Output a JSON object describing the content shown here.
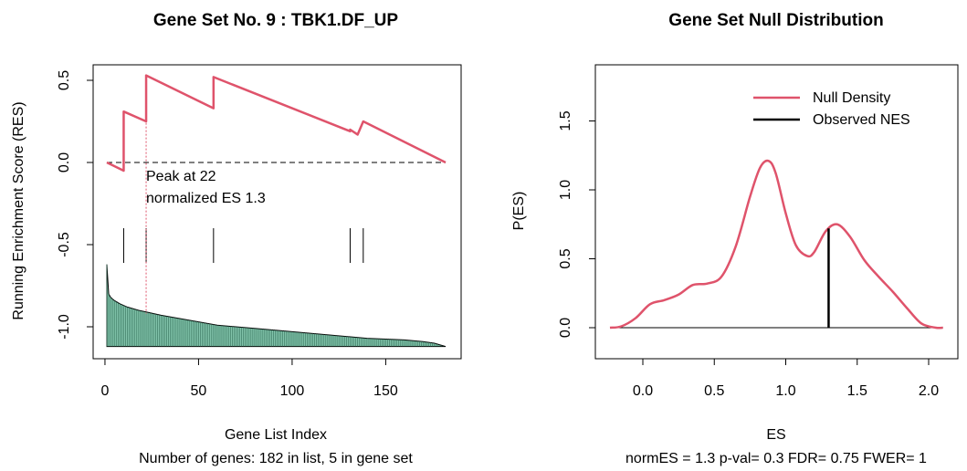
{
  "chart_data": [
    {
      "type": "line",
      "title": "Gene Set No. 9 : TBK1.DF_UP",
      "xlabel": "Gene List Index",
      "subtitle": "Number of genes: 182 in list, 5 in gene set",
      "ylabel": "Running Enrichment Score (RES)",
      "xlim": [
        1,
        182
      ],
      "ylim": [
        -1.15,
        0.58
      ],
      "x_ticks": [
        "0",
        "50",
        "100",
        "150"
      ],
      "y_ticks": [
        "-1.0",
        "-0.5",
        "0.0",
        "0.5"
      ],
      "annotation_lines": [
        "Peak at 22",
        "normalized ES 1.3"
      ],
      "peak_index": 22,
      "hit_indices": [
        10,
        22,
        58,
        131,
        138
      ],
      "colors": {
        "res_line": "#DF536B",
        "ranked_fill": "#82C4AB",
        "peak_line": "#DF536B"
      },
      "series": [
        {
          "x": [
            1,
            10,
            10,
            22,
            22,
            58,
            58,
            131,
            131,
            135,
            135,
            138,
            138,
            182
          ],
          "y": [
            0.0,
            -0.05,
            0.31,
            0.25,
            0.53,
            0.33,
            0.52,
            0.19,
            0.2,
            0.17,
            0.17,
            0.25,
            0.25,
            0.0
          ]
        }
      ],
      "ranked_metric": {
        "x": [
          1,
          2,
          3,
          5,
          8,
          12,
          18,
          22,
          30,
          40,
          50,
          60,
          80,
          100,
          120,
          140,
          160,
          170,
          176,
          182
        ],
        "y": [
          -0.62,
          -0.8,
          -0.82,
          -0.84,
          -0.86,
          -0.88,
          -0.9,
          -0.91,
          -0.93,
          -0.95,
          -0.97,
          -0.99,
          -1.01,
          -1.03,
          -1.05,
          -1.07,
          -1.08,
          -1.09,
          -1.1,
          -1.12
        ]
      }
    },
    {
      "type": "line",
      "title": "Gene Set Null Distribution",
      "xlabel": "ES",
      "subtitle": "normES = 1.3 p-val= 0.3 FDR= 0.75 FWER= 1",
      "ylabel": "P(ES)",
      "xlim": [
        -0.25,
        2.1
      ],
      "ylim": [
        0.0,
        1.88
      ],
      "x_ticks": [
        "0.0",
        "0.5",
        "1.0",
        "1.5",
        "2.0"
      ],
      "y_ticks": [
        "0.0",
        "0.5",
        "1.0",
        "1.5"
      ],
      "legend_position": "top-right",
      "legend": [
        "Null Density",
        "Observed NES"
      ],
      "colors": {
        "null_density": "#DF536B",
        "observed": "#000000"
      },
      "observed_nes": 1.3,
      "observed_height": 0.72,
      "series": [
        {
          "name": "Null Density",
          "x": [
            -0.23,
            -0.15,
            -0.05,
            0.05,
            0.15,
            0.25,
            0.35,
            0.45,
            0.55,
            0.65,
            0.75,
            0.82,
            0.88,
            0.93,
            1.0,
            1.07,
            1.15,
            1.2,
            1.28,
            1.36,
            1.45,
            1.55,
            1.65,
            1.75,
            1.85,
            1.95,
            2.05,
            2.1
          ],
          "y": [
            0.0,
            0.01,
            0.07,
            0.17,
            0.2,
            0.24,
            0.31,
            0.32,
            0.37,
            0.59,
            0.95,
            1.16,
            1.21,
            1.12,
            0.83,
            0.6,
            0.52,
            0.55,
            0.7,
            0.75,
            0.66,
            0.49,
            0.37,
            0.26,
            0.14,
            0.03,
            0.0,
            0.0
          ]
        }
      ]
    }
  ]
}
